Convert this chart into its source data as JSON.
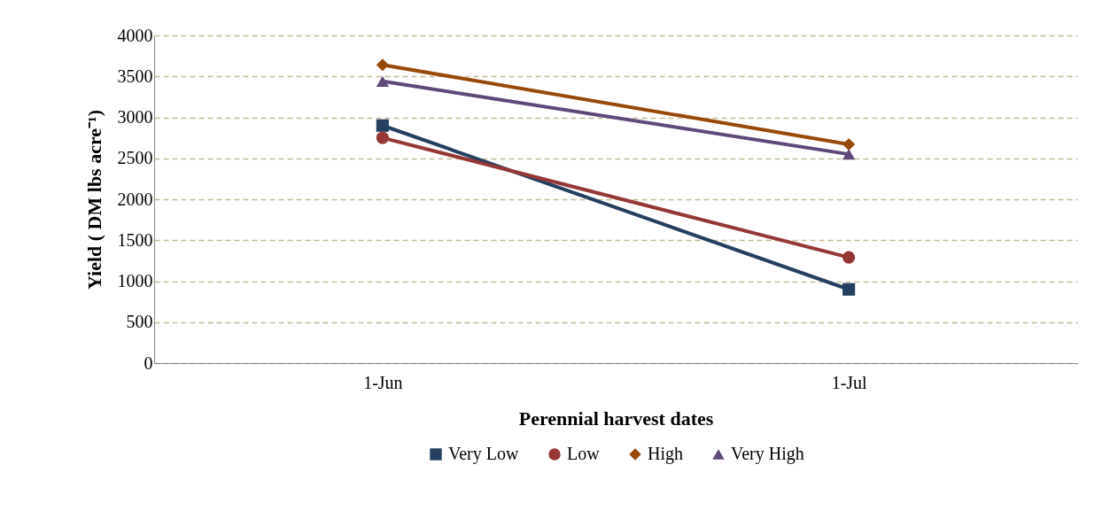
{
  "chart_data": {
    "type": "line",
    "xlabel": "Perennial harvest dates",
    "ylabel": "Yield ( DM lbs acre⁻¹)",
    "categories": [
      "1-Jun",
      "1-Jul"
    ],
    "series": [
      {
        "name": "Very Low",
        "color": "#243f60",
        "marker": "square",
        "values": [
          2900,
          900
        ]
      },
      {
        "name": "Low",
        "color": "#953735",
        "marker": "circle",
        "values": [
          2750,
          1290
        ]
      },
      {
        "name": "High",
        "color": "#984807",
        "marker": "diamond",
        "values": [
          3640,
          2670
        ]
      },
      {
        "name": "Very High",
        "color": "#5f497a",
        "marker": "triangle",
        "values": [
          3440,
          2550
        ]
      }
    ],
    "ylim": [
      0,
      4000
    ],
    "yticks": [
      0,
      500,
      1000,
      1500,
      2000,
      2500,
      3000,
      3500,
      4000
    ],
    "grid": "y",
    "legend": "bottom",
    "line_style": "solid"
  }
}
